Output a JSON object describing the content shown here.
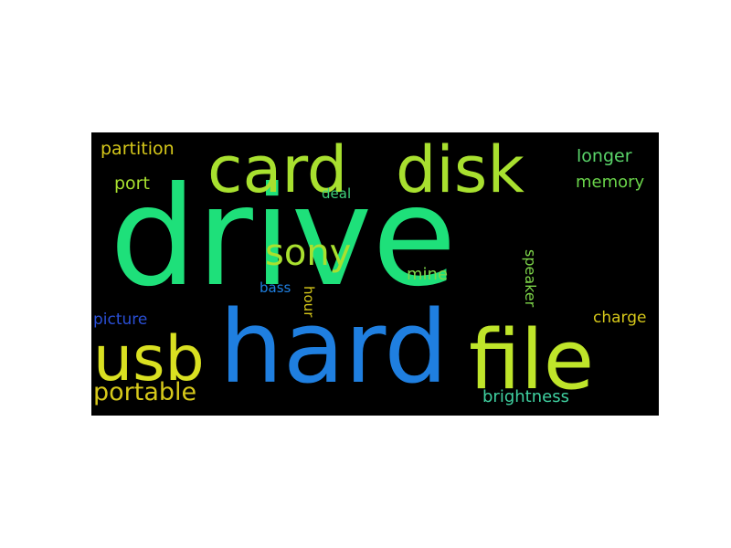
{
  "wordcloud": {
    "words": [
      {
        "text": "drive",
        "color": "#1ee07a"
      },
      {
        "text": "hard",
        "color": "#1f7fe0"
      },
      {
        "text": "file",
        "color": "#bfe52a"
      },
      {
        "text": "card",
        "color": "#a8e02f"
      },
      {
        "text": "disk",
        "color": "#a8e02f"
      },
      {
        "text": "usb",
        "color": "#d9e021"
      },
      {
        "text": "sony",
        "color": "#a8e02f"
      },
      {
        "text": "portable",
        "color": "#d6c81a"
      },
      {
        "text": "partition",
        "color": "#d6c81a"
      },
      {
        "text": "longer",
        "color": "#5ad56a"
      },
      {
        "text": "memory",
        "color": "#6ad44a"
      },
      {
        "text": "port",
        "color": "#a8e02f"
      },
      {
        "text": "deal",
        "color": "#3fd07a"
      },
      {
        "text": "mine",
        "color": "#7ed64a"
      },
      {
        "text": "bass",
        "color": "#1f7fe0"
      },
      {
        "text": "hour",
        "color": "#d6c81a"
      },
      {
        "text": "speaker",
        "color": "#7ed64a"
      },
      {
        "text": "picture",
        "color": "#2a4fd6"
      },
      {
        "text": "charge",
        "color": "#d6c81a"
      },
      {
        "text": "brightness",
        "color": "#3fd0a0"
      }
    ]
  }
}
